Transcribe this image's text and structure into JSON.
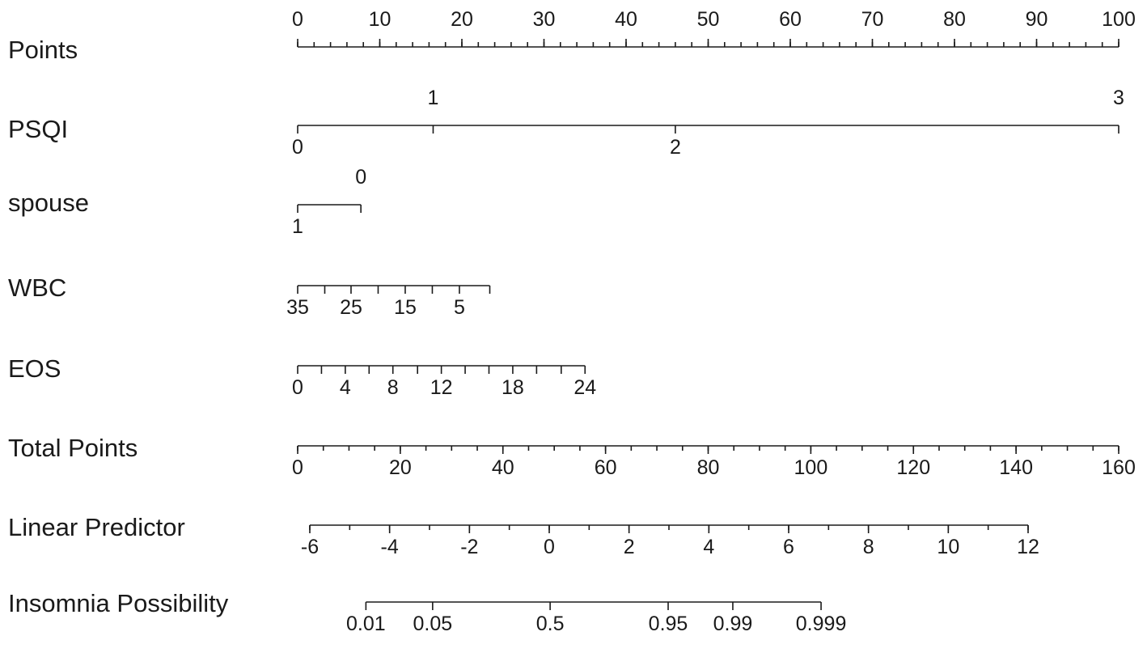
{
  "chart_data": {
    "type": "nomogram",
    "title": "",
    "rows": [
      {
        "label": "Points",
        "ticks": [
          {
            "value": 0,
            "label": "0",
            "side": "top"
          },
          {
            "value": 10,
            "label": "10",
            "side": "top"
          },
          {
            "value": 20,
            "label": "20",
            "side": "top"
          },
          {
            "value": 30,
            "label": "30",
            "side": "top"
          },
          {
            "value": 40,
            "label": "40",
            "side": "top"
          },
          {
            "value": 50,
            "label": "50",
            "side": "top"
          },
          {
            "value": 60,
            "label": "60",
            "side": "top"
          },
          {
            "value": 70,
            "label": "70",
            "side": "top"
          },
          {
            "value": 80,
            "label": "80",
            "side": "top"
          },
          {
            "value": 90,
            "label": "90",
            "side": "top"
          },
          {
            "value": 100,
            "label": "100",
            "side": "top"
          }
        ],
        "minor_step": 2,
        "range": [
          0,
          100
        ]
      },
      {
        "label": "PSQI",
        "ticks": [
          {
            "value": 0,
            "label": "0",
            "points": 0,
            "side": "bottom"
          },
          {
            "value": 1,
            "label": "1",
            "points": 16.5,
            "side": "top"
          },
          {
            "value": 2,
            "label": "2",
            "points": 46,
            "side": "bottom"
          },
          {
            "value": 3,
            "label": "3",
            "points": 100,
            "side": "top"
          }
        ]
      },
      {
        "label": "spouse",
        "ticks": [
          {
            "value": 1,
            "label": "1",
            "points": 0,
            "side": "bottom"
          },
          {
            "value": 0,
            "label": "0",
            "points": 7.7,
            "side": "top"
          }
        ]
      },
      {
        "label": "WBC",
        "ticks": [
          {
            "value": 35,
            "label": "35",
            "points": 0,
            "side": "bottom"
          },
          {
            "value": 30,
            "label": "",
            "points": 3.3,
            "side": "bottom"
          },
          {
            "value": 25,
            "label": "25",
            "points": 6.5,
            "side": "bottom"
          },
          {
            "value": 20,
            "label": "",
            "points": 9.8,
            "side": "bottom"
          },
          {
            "value": 15,
            "label": "15",
            "points": 13.1,
            "side": "bottom"
          },
          {
            "value": 10,
            "label": "",
            "points": 16.4,
            "side": "bottom"
          },
          {
            "value": 5,
            "label": "5",
            "points": 19.7,
            "side": "bottom"
          },
          {
            "value": 0,
            "label": "",
            "points": 23.4,
            "side": "bottom"
          }
        ]
      },
      {
        "label": "EOS",
        "ticks": [
          {
            "value": 0,
            "label": "0",
            "points": 0,
            "side": "bottom"
          },
          {
            "value": 2,
            "label": "",
            "points": 2.9,
            "side": "bottom"
          },
          {
            "value": 4,
            "label": "4",
            "points": 5.8,
            "side": "bottom"
          },
          {
            "value": 6,
            "label": "",
            "points": 8.7,
            "side": "bottom"
          },
          {
            "value": 8,
            "label": "8",
            "points": 11.6,
            "side": "bottom"
          },
          {
            "value": 10,
            "label": "",
            "points": 14.6,
            "side": "bottom"
          },
          {
            "value": 12,
            "label": "12",
            "points": 17.5,
            "side": "bottom"
          },
          {
            "value": 14,
            "label": "",
            "points": 20.4,
            "side": "bottom"
          },
          {
            "value": 16,
            "label": "",
            "points": 23.3,
            "side": "bottom"
          },
          {
            "value": 18,
            "label": "18",
            "points": 26.2,
            "side": "bottom"
          },
          {
            "value": 20,
            "label": "",
            "points": 29.1,
            "side": "bottom"
          },
          {
            "value": 22,
            "label": "",
            "points": 32.1,
            "side": "bottom"
          },
          {
            "value": 24,
            "label": "24",
            "points": 35,
            "side": "bottom"
          }
        ]
      },
      {
        "label": "Total Points",
        "ticks": [
          {
            "value": 0,
            "label": "0",
            "side": "bottom"
          },
          {
            "value": 20,
            "label": "20",
            "side": "bottom"
          },
          {
            "value": 40,
            "label": "40",
            "side": "bottom"
          },
          {
            "value": 60,
            "label": "60",
            "side": "bottom"
          },
          {
            "value": 80,
            "label": "80",
            "side": "bottom"
          },
          {
            "value": 100,
            "label": "100",
            "side": "bottom"
          },
          {
            "value": 120,
            "label": "120",
            "side": "bottom"
          },
          {
            "value": 140,
            "label": "140",
            "side": "bottom"
          },
          {
            "value": 160,
            "label": "160",
            "side": "bottom"
          }
        ],
        "minor_step": 5,
        "range": [
          0,
          160
        ]
      },
      {
        "label": "Linear Predictor",
        "ticks": [
          {
            "value": -6,
            "label": "-6",
            "side": "bottom"
          },
          {
            "value": -4,
            "label": "-4",
            "side": "bottom"
          },
          {
            "value": -2,
            "label": "-2",
            "side": "bottom"
          },
          {
            "value": 0,
            "label": "0",
            "side": "bottom"
          },
          {
            "value": 2,
            "label": "2",
            "side": "bottom"
          },
          {
            "value": 4,
            "label": "4",
            "side": "bottom"
          },
          {
            "value": 6,
            "label": "6",
            "side": "bottom"
          },
          {
            "value": 8,
            "label": "8",
            "side": "bottom"
          },
          {
            "value": 10,
            "label": "10",
            "side": "bottom"
          },
          {
            "value": 12,
            "label": "12",
            "side": "bottom"
          }
        ],
        "minor_step": 1,
        "range": [
          -6,
          12
        ]
      },
      {
        "label": "Insomnia Possibility",
        "ticks": [
          {
            "value": 0.01,
            "label": "0.01",
            "total_points": 13.3,
            "side": "bottom"
          },
          {
            "value": 0.05,
            "label": "0.05",
            "total_points": 26.3,
            "side": "bottom"
          },
          {
            "value": 0.5,
            "label": "0.5",
            "total_points": 49.2,
            "side": "bottom"
          },
          {
            "value": 0.95,
            "label": "0.95",
            "total_points": 72.2,
            "side": "bottom"
          },
          {
            "value": 0.99,
            "label": "0.99",
            "total_points": 84.8,
            "side": "bottom"
          },
          {
            "value": 0.999,
            "label": "0.999",
            "total_points": 102.0,
            "side": "bottom"
          }
        ]
      }
    ]
  }
}
